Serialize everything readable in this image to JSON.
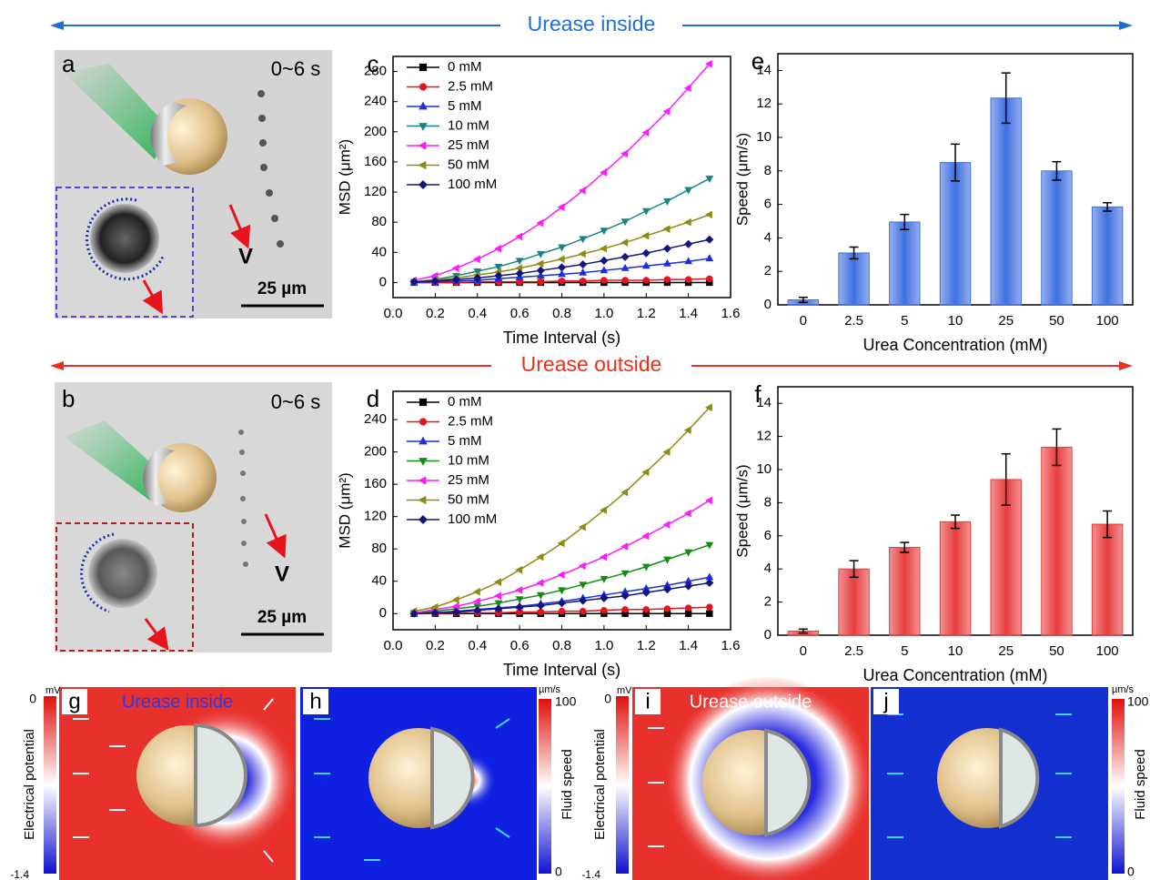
{
  "headers": {
    "inside": "Urease inside",
    "outside": "Urease outside"
  },
  "panels": {
    "a": {
      "label": "a",
      "time": "0~6 s",
      "scale": "25 µm"
    },
    "b": {
      "label": "b",
      "time": "0~6 s",
      "scale": "25 µm"
    },
    "g": {
      "label": "g",
      "overlay": "Urease inside"
    },
    "h": {
      "label": "h"
    },
    "i": {
      "label": "i",
      "overlay": "Urease outside"
    },
    "j": {
      "label": "j"
    }
  },
  "colorbars": [
    {
      "unit": "mV",
      "max": 0,
      "min": -1.4,
      "title": "Electrical potential"
    },
    {
      "unit": "µm/s",
      "max": 100,
      "min": 0,
      "title": "Fluid speed"
    },
    {
      "unit": "mV",
      "max": 0,
      "min": -1.4,
      "title": "Electrical potential"
    },
    {
      "unit": "µm/s",
      "max": 100,
      "min": 0,
      "title": "Fluid speed"
    }
  ],
  "chart_data": [
    {
      "type": "line",
      "panel_label": "c",
      "x_label": "Time Interval (s)",
      "y_label": "MSD (μm²)",
      "x": [
        0.1,
        0.2,
        0.3,
        0.4,
        0.5,
        0.6,
        0.7,
        0.8,
        0.9,
        1.0,
        1.1,
        1.2,
        1.3,
        1.4,
        1.5
      ],
      "xlim": [
        0,
        1.6
      ],
      "xticks": [
        {
          "value": 0,
          "label": "0.0"
        },
        0.2,
        0.4,
        0.6,
        0.8,
        {
          "value": 1,
          "label": "1.0"
        },
        1.2,
        1.4,
        1.6
      ],
      "ylim": [
        -20,
        300
      ],
      "yticks": [
        0,
        40,
        80,
        120,
        160,
        200,
        240,
        280
      ],
      "series": [
        {
          "name": "0 mM",
          "color": "#000000",
          "marker": "square",
          "values": [
            0,
            0,
            0,
            0,
            0,
            0,
            0,
            0,
            0,
            0,
            0,
            0,
            0,
            0,
            0
          ]
        },
        {
          "name": "2.5 mM",
          "color": "#e8141c",
          "marker": "circle",
          "values": [
            0,
            0,
            0,
            1,
            1,
            1,
            1,
            2,
            2,
            3,
            3,
            3,
            4,
            4,
            5
          ]
        },
        {
          "name": "5 mM",
          "color": "#1a2ee0",
          "marker": "triangle-up",
          "values": [
            0,
            1,
            2,
            3,
            5,
            7,
            9,
            11,
            13,
            16,
            19,
            22,
            25,
            28,
            32
          ]
        },
        {
          "name": "10 mM",
          "color": "#1a8484",
          "marker": "triangle-down",
          "values": [
            1,
            4,
            9,
            15,
            21,
            29,
            38,
            47,
            58,
            69,
            81,
            95,
            108,
            123,
            138
          ]
        },
        {
          "name": "25 mM",
          "color": "#ff1aff",
          "marker": "triangle-left",
          "values": [
            3,
            9,
            19,
            31,
            45,
            61,
            79,
            100,
            122,
            146,
            171,
            199,
            227,
            258,
            290
          ]
        },
        {
          "name": "50 mM",
          "color": "#8c8c14",
          "marker": "triangle-left",
          "values": [
            1,
            3,
            6,
            10,
            14,
            19,
            25,
            31,
            38,
            45,
            53,
            62,
            71,
            80,
            90
          ]
        },
        {
          "name": "100 mM",
          "color": "#14147c",
          "marker": "diamond",
          "values": [
            1,
            2,
            4,
            6,
            9,
            12,
            16,
            20,
            24,
            29,
            34,
            39,
            45,
            51,
            57
          ]
        }
      ]
    },
    {
      "type": "line",
      "panel_label": "d",
      "x_label": "Time Interval (s)",
      "y_label": "MSD (μm²)",
      "x": [
        0.1,
        0.2,
        0.3,
        0.4,
        0.5,
        0.6,
        0.7,
        0.8,
        0.9,
        1.0,
        1.1,
        1.2,
        1.3,
        1.4,
        1.5
      ],
      "xlim": [
        0,
        1.6
      ],
      "xticks": [
        {
          "value": 0,
          "label": "0.0"
        },
        0.2,
        0.4,
        0.6,
        0.8,
        {
          "value": 1,
          "label": "1.0"
        },
        1.2,
        1.4,
        1.6
      ],
      "ylim": [
        -20,
        275
      ],
      "yticks": [
        0,
        40,
        80,
        120,
        160,
        200,
        240
      ],
      "series": [
        {
          "name": "0 mM",
          "color": "#000000",
          "marker": "square",
          "values": [
            0,
            0,
            0,
            0,
            0,
            0,
            0,
            0,
            0,
            0,
            0,
            0,
            0,
            0,
            0
          ]
        },
        {
          "name": "2.5 mM",
          "color": "#e8141c",
          "marker": "circle",
          "values": [
            0,
            0,
            1,
            1,
            1,
            2,
            2,
            3,
            3,
            4,
            5,
            5,
            6,
            7,
            8
          ]
        },
        {
          "name": "5 mM",
          "color": "#1a2ee0",
          "marker": "triangle-up",
          "values": [
            0,
            1,
            3,
            5,
            7,
            9,
            12,
            15,
            19,
            23,
            27,
            31,
            35,
            40,
            45
          ]
        },
        {
          "name": "10 mM",
          "color": "#148c14",
          "marker": "triangle-down",
          "values": [
            1,
            3,
            6,
            9,
            13,
            18,
            23,
            29,
            36,
            43,
            50,
            58,
            67,
            76,
            85
          ]
        },
        {
          "name": "25 mM",
          "color": "#ff1aff",
          "marker": "triangle-left",
          "values": [
            1,
            5,
            9,
            15,
            22,
            29,
            38,
            48,
            59,
            70,
            83,
            96,
            110,
            124,
            140
          ]
        },
        {
          "name": "50 mM",
          "color": "#8c8c14",
          "marker": "triangle-left",
          "values": [
            3,
            8,
            17,
            27,
            39,
            54,
            70,
            87,
            107,
            128,
            150,
            175,
            200,
            227,
            255
          ]
        },
        {
          "name": "100 mM",
          "color": "#14147c",
          "marker": "diamond",
          "values": [
            0,
            1,
            2,
            4,
            6,
            8,
            10,
            13,
            16,
            19,
            22,
            26,
            30,
            34,
            38
          ]
        }
      ]
    },
    {
      "type": "bar",
      "panel_label": "e",
      "x_label": "Urea Concentration (mM)",
      "y_label": "Speed (μm/s)",
      "categories": [
        "0",
        "2.5",
        "5",
        "10",
        "25",
        "50",
        "100"
      ],
      "values": [
        0.3,
        3.1,
        4.95,
        8.5,
        12.35,
        8.0,
        5.85
      ],
      "errors": [
        0.15,
        0.35,
        0.45,
        1.1,
        1.5,
        0.55,
        0.25
      ],
      "color": "#3f6fe0",
      "ylim": [
        0,
        15
      ],
      "yticks": [
        0,
        2,
        4,
        6,
        8,
        10,
        12,
        14
      ]
    },
    {
      "type": "bar",
      "panel_label": "f",
      "x_label": "Urea Concentration (mM)",
      "y_label": "Speed (μm/s)",
      "categories": [
        "0",
        "2.5",
        "5",
        "10",
        "25",
        "50",
        "100"
      ],
      "values": [
        0.25,
        4.0,
        5.3,
        6.85,
        9.4,
        11.35,
        6.7
      ],
      "errors": [
        0.12,
        0.5,
        0.3,
        0.4,
        1.55,
        1.1,
        0.8
      ],
      "color": "#e83c3c",
      "ylim": [
        0,
        15
      ],
      "yticks": [
        0,
        2,
        4,
        6,
        8,
        10,
        12,
        14
      ]
    }
  ]
}
